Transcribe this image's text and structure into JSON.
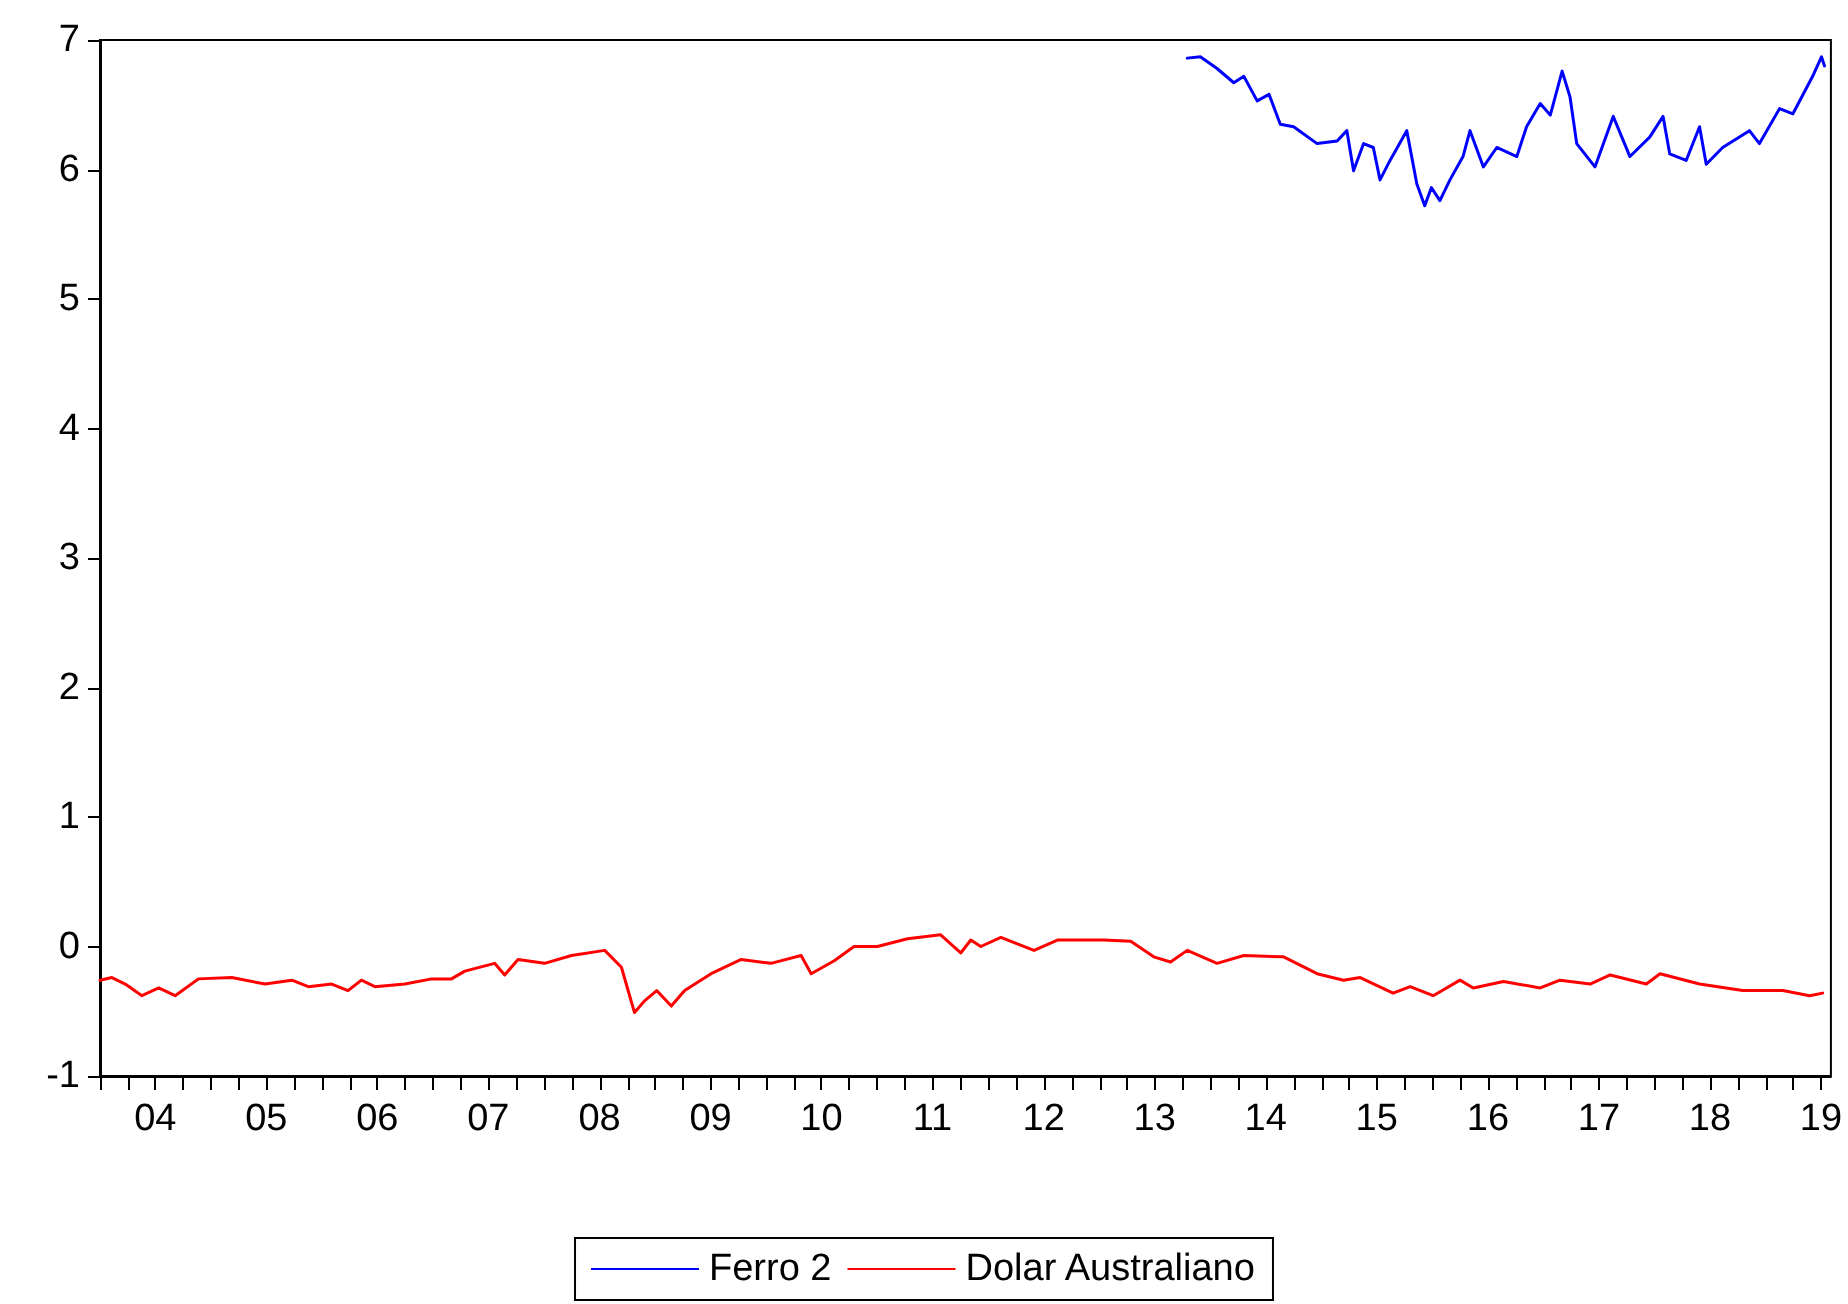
{
  "chart_data": {
    "type": "line",
    "legend": "bottom",
    "grid": false,
    "marker": "none",
    "line_style": "solid",
    "xlim": [
      "2004-01-01",
      "2019-08-03"
    ],
    "xticks": [
      {
        "value": "2004-01-01",
        "label": null
      },
      {
        "value": "2004-04-01",
        "label": null
      },
      {
        "value": "2004-07-01",
        "label": "04"
      },
      {
        "value": "2004-10-01",
        "label": null
      },
      {
        "value": "2005-01-01",
        "label": null
      },
      {
        "value": "2005-04-01",
        "label": null
      },
      {
        "value": "2005-07-01",
        "label": "05"
      },
      {
        "value": "2005-10-01",
        "label": null
      },
      {
        "value": "2006-01-01",
        "label": null
      },
      {
        "value": "2006-04-01",
        "label": null
      },
      {
        "value": "2006-07-01",
        "label": "06"
      },
      {
        "value": "2006-10-01",
        "label": null
      },
      {
        "value": "2007-01-01",
        "label": null
      },
      {
        "value": "2007-04-01",
        "label": null
      },
      {
        "value": "2007-07-01",
        "label": "07"
      },
      {
        "value": "2007-10-01",
        "label": null
      },
      {
        "value": "2008-01-01",
        "label": null
      },
      {
        "value": "2008-04-01",
        "label": null
      },
      {
        "value": "2008-07-01",
        "label": "08"
      },
      {
        "value": "2008-10-01",
        "label": null
      },
      {
        "value": "2009-01-01",
        "label": null
      },
      {
        "value": "2009-04-01",
        "label": null
      },
      {
        "value": "2009-07-01",
        "label": "09"
      },
      {
        "value": "2009-10-01",
        "label": null
      },
      {
        "value": "2010-01-01",
        "label": null
      },
      {
        "value": "2010-04-01",
        "label": null
      },
      {
        "value": "2010-07-01",
        "label": "10"
      },
      {
        "value": "2010-10-01",
        "label": null
      },
      {
        "value": "2011-01-01",
        "label": null
      },
      {
        "value": "2011-04-01",
        "label": null
      },
      {
        "value": "2011-07-01",
        "label": "11"
      },
      {
        "value": "2011-10-01",
        "label": null
      },
      {
        "value": "2012-01-01",
        "label": null
      },
      {
        "value": "2012-04-01",
        "label": null
      },
      {
        "value": "2012-07-01",
        "label": "12"
      },
      {
        "value": "2012-10-01",
        "label": null
      },
      {
        "value": "2013-01-01",
        "label": null
      },
      {
        "value": "2013-04-01",
        "label": null
      },
      {
        "value": "2013-07-01",
        "label": "13"
      },
      {
        "value": "2013-10-01",
        "label": null
      },
      {
        "value": "2014-01-01",
        "label": null
      },
      {
        "value": "2014-04-01",
        "label": null
      },
      {
        "value": "2014-07-01",
        "label": "14"
      },
      {
        "value": "2014-10-01",
        "label": null
      },
      {
        "value": "2015-01-01",
        "label": null
      },
      {
        "value": "2015-04-01",
        "label": null
      },
      {
        "value": "2015-07-01",
        "label": "15"
      },
      {
        "value": "2015-10-01",
        "label": null
      },
      {
        "value": "2016-01-01",
        "label": null
      },
      {
        "value": "2016-04-01",
        "label": null
      },
      {
        "value": "2016-07-01",
        "label": "16"
      },
      {
        "value": "2016-10-01",
        "label": null
      },
      {
        "value": "2017-01-01",
        "label": null
      },
      {
        "value": "2017-04-01",
        "label": null
      },
      {
        "value": "2017-07-01",
        "label": "17"
      },
      {
        "value": "2017-10-01",
        "label": null
      },
      {
        "value": "2018-01-01",
        "label": null
      },
      {
        "value": "2018-04-01",
        "label": null
      },
      {
        "value": "2018-07-01",
        "label": "18"
      },
      {
        "value": "2018-10-01",
        "label": null
      },
      {
        "value": "2019-01-01",
        "label": null
      },
      {
        "value": "2019-04-01",
        "label": null
      },
      {
        "value": "2019-07-01",
        "label": "19"
      }
    ],
    "ylim": [
      -1,
      7
    ],
    "yticks": [
      -1,
      0,
      1,
      2,
      3,
      4,
      5,
      6,
      7
    ],
    "series": [
      {
        "name": "Ferro 2",
        "color": "#0000ff",
        "x": [
          "2013-10-16",
          "2013-11-28",
          "2014-01-22",
          "2014-03-18",
          "2014-04-20",
          "2014-06-03",
          "2014-07-12",
          "2014-08-18",
          "2014-10-01",
          "2014-12-17",
          "2015-02-21",
          "2015-03-25",
          "2015-04-16",
          "2015-05-19",
          "2015-06-20",
          "2015-07-12",
          "2015-08-14",
          "2015-10-08",
          "2015-11-10",
          "2015-12-06",
          "2015-12-28",
          "2016-01-25",
          "2016-02-27",
          "2016-04-10",
          "2016-05-03",
          "2016-06-16",
          "2016-07-30",
          "2016-10-04",
          "2016-11-05",
          "2016-12-20",
          "2017-01-22",
          "2017-03-02",
          "2017-03-28",
          "2017-04-19",
          "2017-06-18",
          "2017-08-17",
          "2017-10-11",
          "2017-12-15",
          "2018-01-28",
          "2018-02-19",
          "2018-04-14",
          "2018-05-28",
          "2018-06-19",
          "2018-08-12",
          "2018-11-08",
          "2018-12-11",
          "2019-02-15",
          "2019-03-31",
          "2019-06-04",
          "2019-07-03",
          "2019-07-13"
        ],
        "values": [
          6.86,
          6.87,
          6.78,
          6.67,
          6.72,
          6.53,
          6.58,
          6.35,
          6.33,
          6.2,
          6.22,
          6.3,
          5.99,
          6.2,
          6.17,
          5.92,
          6.07,
          6.3,
          5.89,
          5.72,
          5.86,
          5.76,
          5.92,
          6.1,
          6.3,
          6.02,
          6.17,
          6.1,
          6.33,
          6.51,
          6.42,
          6.76,
          6.56,
          6.2,
          6.02,
          6.41,
          6.1,
          6.25,
          6.41,
          6.12,
          6.07,
          6.33,
          6.04,
          6.17,
          6.3,
          6.2,
          6.47,
          6.43,
          6.72,
          6.87,
          6.8
        ]
      },
      {
        "name": "Dolar Australiano",
        "color": "#ff0000",
        "x": [
          "2004-01-01",
          "2004-02-09",
          "2004-03-24",
          "2004-05-18",
          "2004-07-12",
          "2004-09-04",
          "2004-11-20",
          "2005-03-09",
          "2005-06-27",
          "2005-09-23",
          "2005-11-16",
          "2006-02-01",
          "2006-03-27",
          "2006-05-10",
          "2006-06-23",
          "2006-09-30",
          "2006-12-27",
          "2007-03-02",
          "2007-04-15",
          "2007-07-22",
          "2007-08-24",
          "2007-10-07",
          "2008-01-02",
          "2008-03-31",
          "2008-07-18",
          "2008-09-11",
          "2008-10-03",
          "2008-10-24",
          "2008-11-26",
          "2009-01-05",
          "2009-02-22",
          "2009-04-07",
          "2009-07-03",
          "2009-10-10",
          "2010-01-16",
          "2010-04-25",
          "2010-05-28",
          "2010-08-12",
          "2010-10-16",
          "2011-01-01",
          "2011-04-10",
          "2011-07-28",
          "2011-10-02",
          "2011-11-04",
          "2011-12-07",
          "2012-02-11",
          "2012-05-30",
          "2012-08-15",
          "2013-01-15",
          "2013-04-13",
          "2013-06-28",
          "2013-08-22",
          "2013-10-16",
          "2014-01-22",
          "2014-04-20",
          "2014-08-29",
          "2014-12-17",
          "2015-03-14",
          "2015-05-08",
          "2015-08-24",
          "2015-10-19",
          "2016-01-03",
          "2016-03-31",
          "2016-05-14",
          "2016-08-21",
          "2016-12-20",
          "2017-02-23",
          "2017-06-02",
          "2017-08-07",
          "2017-12-04",
          "2018-01-18",
          "2018-05-28",
          "2018-10-17",
          "2018-12-22",
          "2019-02-26",
          "2019-05-25",
          "2019-07-07"
        ],
        "values": [
          -0.26,
          -0.24,
          -0.29,
          -0.38,
          -0.32,
          -0.38,
          -0.25,
          -0.24,
          -0.29,
          -0.26,
          -0.31,
          -0.29,
          -0.34,
          -0.26,
          -0.31,
          -0.29,
          -0.25,
          -0.25,
          -0.19,
          -0.13,
          -0.22,
          -0.1,
          -0.13,
          -0.07,
          -0.03,
          -0.16,
          -0.34,
          -0.51,
          -0.42,
          -0.34,
          -0.46,
          -0.34,
          -0.21,
          -0.1,
          -0.13,
          -0.07,
          -0.21,
          -0.11,
          0.0,
          0.0,
          0.06,
          0.09,
          -0.05,
          0.05,
          0.0,
          0.07,
          -0.03,
          0.05,
          0.05,
          0.04,
          -0.08,
          -0.12,
          -0.03,
          -0.13,
          -0.07,
          -0.08,
          -0.21,
          -0.26,
          -0.24,
          -0.36,
          -0.31,
          -0.38,
          -0.26,
          -0.32,
          -0.27,
          -0.32,
          -0.26,
          -0.29,
          -0.22,
          -0.29,
          -0.21,
          -0.29,
          -0.34,
          -0.34,
          -0.34,
          -0.38,
          -0.36
        ]
      }
    ]
  }
}
